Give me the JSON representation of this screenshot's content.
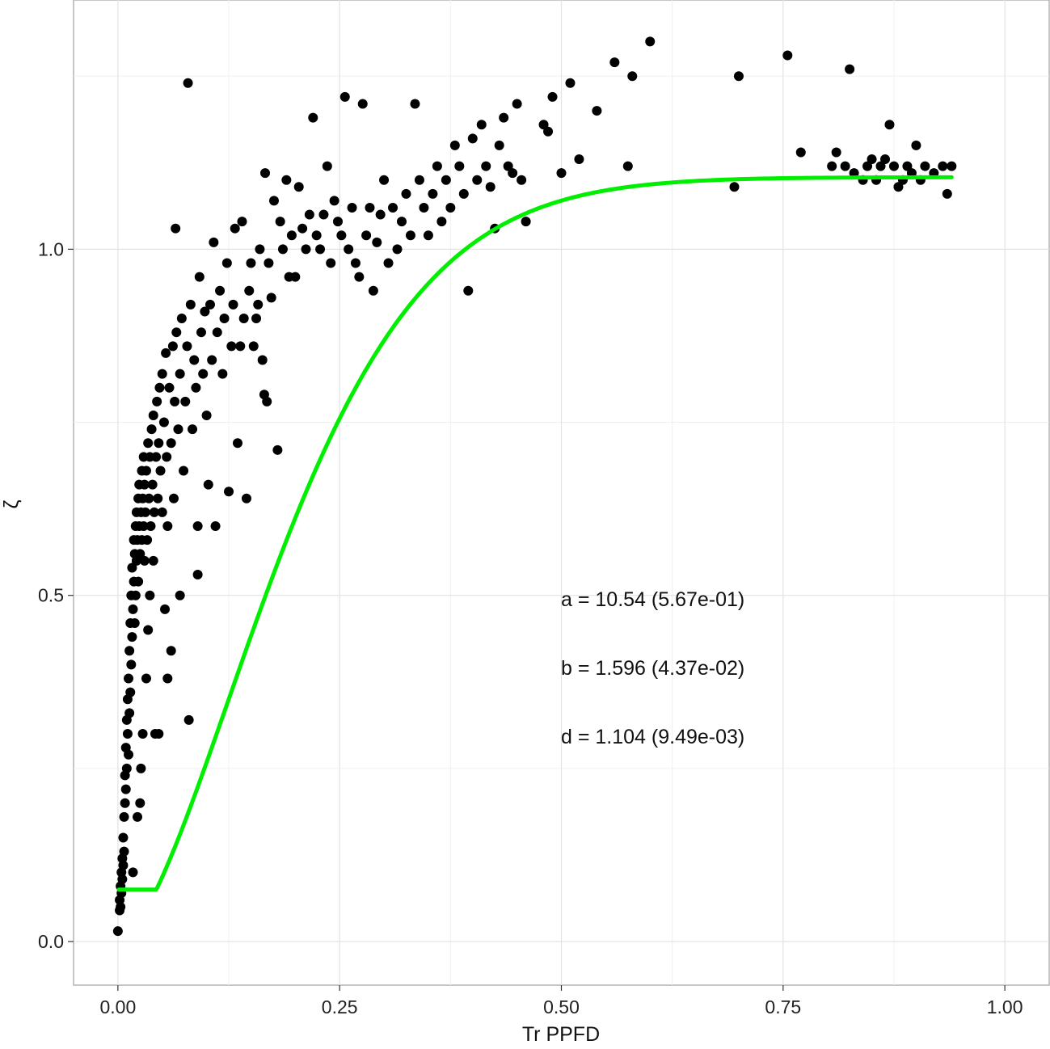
{
  "chart_data": {
    "type": "scatter",
    "title": "",
    "xlabel": "Tr PPFD",
    "ylabel": "ζ",
    "xlim": [
      -0.05,
      1.05
    ],
    "ylim": [
      -0.063,
      1.36
    ],
    "x_ticks": [
      0.0,
      0.25,
      0.5,
      0.75,
      1.0
    ],
    "x_tick_labels": [
      "0.00",
      "0.25",
      "0.50",
      "0.75",
      "1.00"
    ],
    "y_ticks": [
      0.0,
      0.5,
      1.0
    ],
    "y_tick_labels": [
      "0.0",
      "0.5",
      "1.0"
    ],
    "grid": true,
    "legend": "none",
    "fit": {
      "model": "zeta = d * (1 - exp(-a * x^b))",
      "a": 10.54,
      "b": 1.596,
      "d": 1.104,
      "color": "#00ee00",
      "x_range": [
        0.0,
        0.94
      ]
    },
    "annotations": [
      "a = 10.54 (5.67e-01)",
      "b = 1.596 (4.37e-02)",
      "d = 1.104 (9.49e-03)"
    ],
    "point_color": "#000000",
    "points": [
      [
        0.0,
        0.015
      ],
      [
        0.002,
        0.045
      ],
      [
        0.002,
        0.06
      ],
      [
        0.003,
        0.08
      ],
      [
        0.003,
        0.05
      ],
      [
        0.004,
        0.1
      ],
      [
        0.004,
        0.07
      ],
      [
        0.005,
        0.12
      ],
      [
        0.005,
        0.09
      ],
      [
        0.006,
        0.15
      ],
      [
        0.006,
        0.11
      ],
      [
        0.007,
        0.18
      ],
      [
        0.007,
        0.13
      ],
      [
        0.008,
        0.2
      ],
      [
        0.008,
        0.24
      ],
      [
        0.009,
        0.22
      ],
      [
        0.009,
        0.28
      ],
      [
        0.01,
        0.25
      ],
      [
        0.01,
        0.32
      ],
      [
        0.011,
        0.3
      ],
      [
        0.011,
        0.35
      ],
      [
        0.012,
        0.27
      ],
      [
        0.012,
        0.38
      ],
      [
        0.013,
        0.33
      ],
      [
        0.013,
        0.42
      ],
      [
        0.014,
        0.36
      ],
      [
        0.014,
        0.46
      ],
      [
        0.015,
        0.4
      ],
      [
        0.015,
        0.5
      ],
      [
        0.016,
        0.44
      ],
      [
        0.016,
        0.54
      ],
      [
        0.017,
        0.48
      ],
      [
        0.017,
        0.1
      ],
      [
        0.018,
        0.52
      ],
      [
        0.018,
        0.58
      ],
      [
        0.019,
        0.46
      ],
      [
        0.019,
        0.56
      ],
      [
        0.02,
        0.6
      ],
      [
        0.02,
        0.5
      ],
      [
        0.021,
        0.55
      ],
      [
        0.021,
        0.62
      ],
      [
        0.022,
        0.58
      ],
      [
        0.022,
        0.18
      ],
      [
        0.023,
        0.64
      ],
      [
        0.023,
        0.52
      ],
      [
        0.024,
        0.6
      ],
      [
        0.024,
        0.66
      ],
      [
        0.025,
        0.56
      ],
      [
        0.025,
        0.2
      ],
      [
        0.026,
        0.62
      ],
      [
        0.026,
        0.25
      ],
      [
        0.027,
        0.68
      ],
      [
        0.027,
        0.58
      ],
      [
        0.028,
        0.64
      ],
      [
        0.028,
        0.3
      ],
      [
        0.029,
        0.6
      ],
      [
        0.029,
        0.7
      ],
      [
        0.03,
        0.66
      ],
      [
        0.03,
        0.55
      ],
      [
        0.031,
        0.62
      ],
      [
        0.032,
        0.68
      ],
      [
        0.032,
        0.38
      ],
      [
        0.033,
        0.58
      ],
      [
        0.034,
        0.72
      ],
      [
        0.034,
        0.45
      ],
      [
        0.035,
        0.64
      ],
      [
        0.036,
        0.7
      ],
      [
        0.036,
        0.5
      ],
      [
        0.037,
        0.6
      ],
      [
        0.038,
        0.74
      ],
      [
        0.039,
        0.66
      ],
      [
        0.04,
        0.76
      ],
      [
        0.04,
        0.55
      ],
      [
        0.041,
        0.62
      ],
      [
        0.042,
        0.3
      ],
      [
        0.043,
        0.7
      ],
      [
        0.044,
        0.78
      ],
      [
        0.045,
        0.64
      ],
      [
        0.046,
        0.72
      ],
      [
        0.046,
        0.3
      ],
      [
        0.047,
        0.8
      ],
      [
        0.048,
        0.68
      ],
      [
        0.05,
        0.62
      ],
      [
        0.05,
        0.82
      ],
      [
        0.052,
        0.75
      ],
      [
        0.053,
        0.48
      ],
      [
        0.054,
        0.85
      ],
      [
        0.055,
        0.7
      ],
      [
        0.056,
        0.6
      ],
      [
        0.056,
        0.38
      ],
      [
        0.058,
        0.8
      ],
      [
        0.06,
        0.72
      ],
      [
        0.06,
        0.42
      ],
      [
        0.062,
        0.86
      ],
      [
        0.063,
        0.64
      ],
      [
        0.064,
        0.78
      ],
      [
        0.065,
        1.03
      ],
      [
        0.066,
        0.88
      ],
      [
        0.068,
        0.74
      ],
      [
        0.07,
        0.82
      ],
      [
        0.07,
        0.5
      ],
      [
        0.072,
        0.9
      ],
      [
        0.074,
        0.68
      ],
      [
        0.076,
        0.78
      ],
      [
        0.078,
        0.86
      ],
      [
        0.079,
        1.24
      ],
      [
        0.08,
        0.32
      ],
      [
        0.082,
        0.92
      ],
      [
        0.084,
        0.74
      ],
      [
        0.086,
        0.84
      ],
      [
        0.088,
        0.8
      ],
      [
        0.09,
        0.6
      ],
      [
        0.09,
        0.53
      ],
      [
        0.092,
        0.96
      ],
      [
        0.094,
        0.88
      ],
      [
        0.096,
        0.82
      ],
      [
        0.098,
        0.91
      ],
      [
        0.1,
        0.76
      ],
      [
        0.102,
        0.66
      ],
      [
        0.104,
        0.92
      ],
      [
        0.106,
        0.84
      ],
      [
        0.108,
        1.01
      ],
      [
        0.11,
        0.6
      ],
      [
        0.112,
        0.88
      ],
      [
        0.115,
        0.94
      ],
      [
        0.118,
        0.82
      ],
      [
        0.12,
        0.9
      ],
      [
        0.123,
        0.98
      ],
      [
        0.125,
        0.65
      ],
      [
        0.128,
        0.86
      ],
      [
        0.13,
        0.92
      ],
      [
        0.132,
        1.03
      ],
      [
        0.135,
        0.72
      ],
      [
        0.138,
        0.86
      ],
      [
        0.14,
        1.04
      ],
      [
        0.142,
        0.9
      ],
      [
        0.145,
        0.64
      ],
      [
        0.148,
        0.94
      ],
      [
        0.15,
        0.98
      ],
      [
        0.153,
        0.86
      ],
      [
        0.156,
        0.9
      ],
      [
        0.158,
        0.92
      ],
      [
        0.16,
        1.0
      ],
      [
        0.163,
        0.84
      ],
      [
        0.165,
        0.79
      ],
      [
        0.166,
        1.11
      ],
      [
        0.168,
        0.78
      ],
      [
        0.17,
        0.98
      ],
      [
        0.173,
        0.93
      ],
      [
        0.176,
        1.07
      ],
      [
        0.18,
        0.71
      ],
      [
        0.183,
        1.04
      ],
      [
        0.186,
        1.0
      ],
      [
        0.19,
        1.1
      ],
      [
        0.193,
        0.96
      ],
      [
        0.196,
        1.02
      ],
      [
        0.2,
        0.96
      ],
      [
        0.204,
        1.09
      ],
      [
        0.208,
        1.03
      ],
      [
        0.212,
        1.0
      ],
      [
        0.216,
        1.05
      ],
      [
        0.22,
        1.19
      ],
      [
        0.224,
        1.02
      ],
      [
        0.228,
        1.0
      ],
      [
        0.232,
        1.05
      ],
      [
        0.236,
        1.12
      ],
      [
        0.24,
        0.98
      ],
      [
        0.244,
        1.07
      ],
      [
        0.248,
        1.04
      ],
      [
        0.252,
        1.02
      ],
      [
        0.256,
        1.22
      ],
      [
        0.26,
        1.0
      ],
      [
        0.264,
        1.06
      ],
      [
        0.268,
        0.98
      ],
      [
        0.272,
        0.96
      ],
      [
        0.276,
        1.21
      ],
      [
        0.28,
        1.02
      ],
      [
        0.284,
        1.06
      ],
      [
        0.288,
        0.94
      ],
      [
        0.292,
        1.01
      ],
      [
        0.296,
        1.05
      ],
      [
        0.3,
        1.1
      ],
      [
        0.305,
        0.98
      ],
      [
        0.31,
        1.06
      ],
      [
        0.315,
        1.0
      ],
      [
        0.32,
        1.04
      ],
      [
        0.325,
        1.08
      ],
      [
        0.33,
        1.02
      ],
      [
        0.335,
        1.21
      ],
      [
        0.34,
        1.1
      ],
      [
        0.345,
        1.06
      ],
      [
        0.35,
        1.02
      ],
      [
        0.355,
        1.08
      ],
      [
        0.36,
        1.12
      ],
      [
        0.365,
        1.04
      ],
      [
        0.37,
        1.1
      ],
      [
        0.375,
        1.06
      ],
      [
        0.38,
        1.15
      ],
      [
        0.385,
        1.12
      ],
      [
        0.39,
        1.08
      ],
      [
        0.395,
        0.94
      ],
      [
        0.4,
        1.16
      ],
      [
        0.405,
        1.1
      ],
      [
        0.41,
        1.18
      ],
      [
        0.415,
        1.12
      ],
      [
        0.42,
        1.09
      ],
      [
        0.425,
        1.03
      ],
      [
        0.43,
        1.15
      ],
      [
        0.435,
        1.19
      ],
      [
        0.44,
        1.12
      ],
      [
        0.445,
        1.11
      ],
      [
        0.45,
        1.21
      ],
      [
        0.455,
        1.1
      ],
      [
        0.46,
        1.04
      ],
      [
        0.48,
        1.18
      ],
      [
        0.485,
        1.17
      ],
      [
        0.49,
        1.22
      ],
      [
        0.5,
        1.11
      ],
      [
        0.51,
        1.24
      ],
      [
        0.52,
        1.13
      ],
      [
        0.54,
        1.2
      ],
      [
        0.56,
        1.27
      ],
      [
        0.575,
        1.12
      ],
      [
        0.58,
        1.25
      ],
      [
        0.6,
        1.3
      ],
      [
        0.695,
        1.09
      ],
      [
        0.7,
        1.25
      ],
      [
        0.755,
        1.28
      ],
      [
        0.77,
        1.14
      ],
      [
        0.805,
        1.12
      ],
      [
        0.81,
        1.14
      ],
      [
        0.82,
        1.12
      ],
      [
        0.825,
        1.26
      ],
      [
        0.83,
        1.11
      ],
      [
        0.84,
        1.1
      ],
      [
        0.845,
        1.12
      ],
      [
        0.85,
        1.13
      ],
      [
        0.855,
        1.1
      ],
      [
        0.86,
        1.12
      ],
      [
        0.865,
        1.13
      ],
      [
        0.87,
        1.18
      ],
      [
        0.875,
        1.12
      ],
      [
        0.88,
        1.09
      ],
      [
        0.885,
        1.1
      ],
      [
        0.89,
        1.12
      ],
      [
        0.895,
        1.11
      ],
      [
        0.9,
        1.15
      ],
      [
        0.905,
        1.1
      ],
      [
        0.91,
        1.12
      ],
      [
        0.92,
        1.11
      ],
      [
        0.93,
        1.12
      ],
      [
        0.935,
        1.08
      ],
      [
        0.94,
        1.12
      ]
    ]
  }
}
